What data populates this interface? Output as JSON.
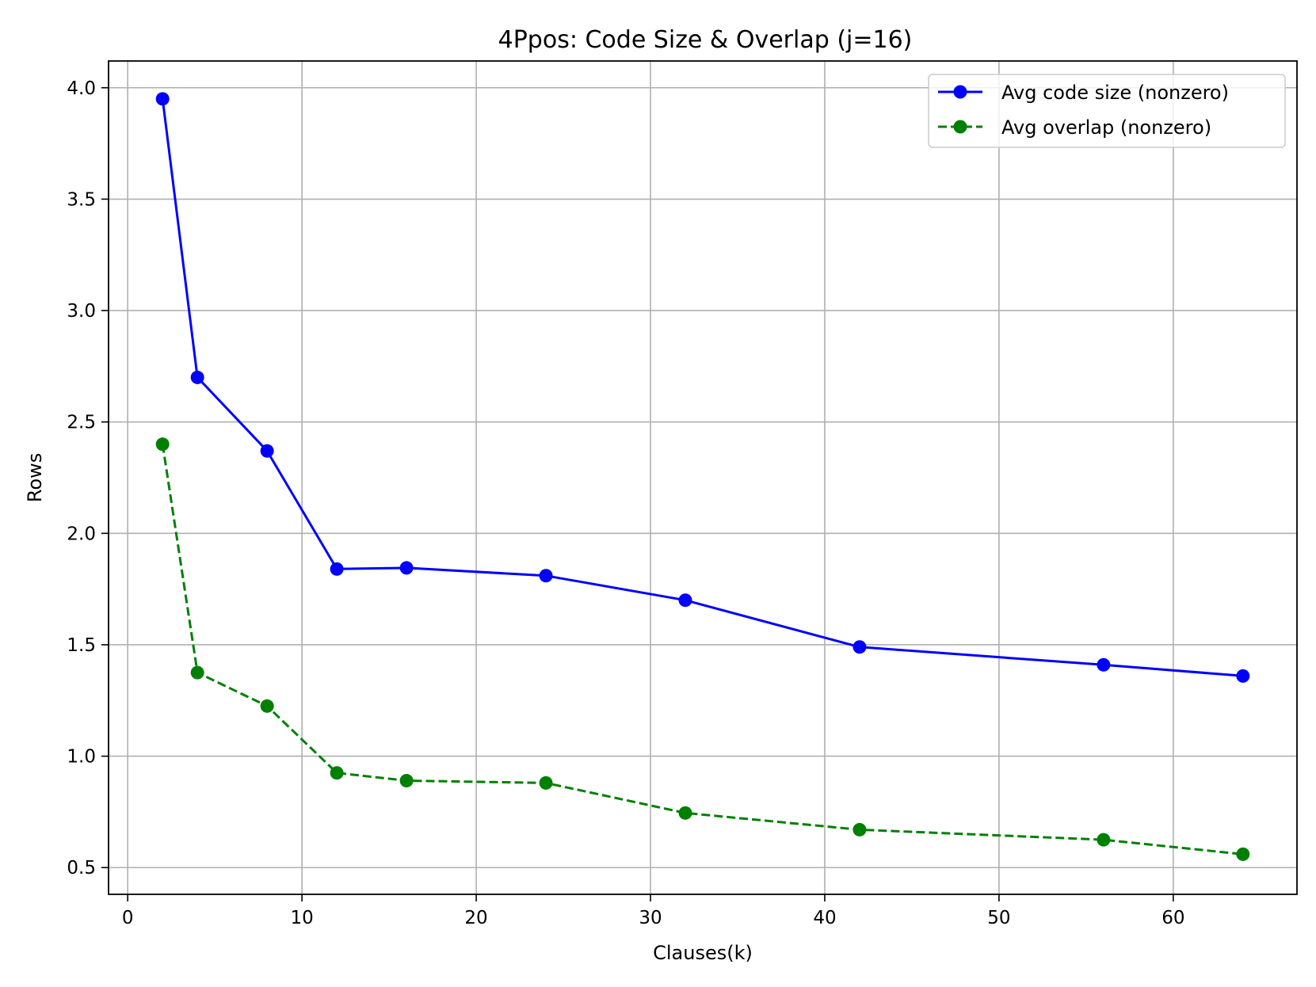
{
  "chart_data": {
    "type": "line",
    "title": "4Ppos: Code Size & Overlap (j=16)",
    "xlabel": "Clauses(k)",
    "ylabel": "Rows",
    "xlim": [
      -1.1,
      67.1
    ],
    "ylim": [
      0.38,
      4.12
    ],
    "xticks": [
      0,
      10,
      20,
      30,
      40,
      50,
      60
    ],
    "xtick_labels": [
      "0",
      "10",
      "20",
      "30",
      "40",
      "50",
      "60"
    ],
    "yticks": [
      0.5,
      1.0,
      1.5,
      2.0,
      2.5,
      3.0,
      3.5,
      4.0
    ],
    "ytick_labels": [
      "0.5",
      "1.0",
      "1.5",
      "2.0",
      "2.5",
      "3.0",
      "3.5",
      "4.0"
    ],
    "grid": true,
    "legend_position": "top-right",
    "x": [
      2,
      4,
      8,
      12,
      16,
      24,
      32,
      42,
      56,
      64
    ],
    "series": [
      {
        "name": "Avg code size (nonzero)",
        "values": [
          3.95,
          2.7,
          2.37,
          1.84,
          1.845,
          1.81,
          1.7,
          1.49,
          1.41,
          1.36
        ],
        "color": "#0000ff",
        "line_style": "solid",
        "marker": "circle"
      },
      {
        "name": "Avg overlap (nonzero)",
        "values": [
          2.4,
          1.375,
          1.225,
          0.925,
          0.89,
          0.88,
          0.745,
          0.67,
          0.625,
          0.56
        ],
        "color": "#008000",
        "line_style": "dashed",
        "marker": "circle"
      }
    ]
  }
}
